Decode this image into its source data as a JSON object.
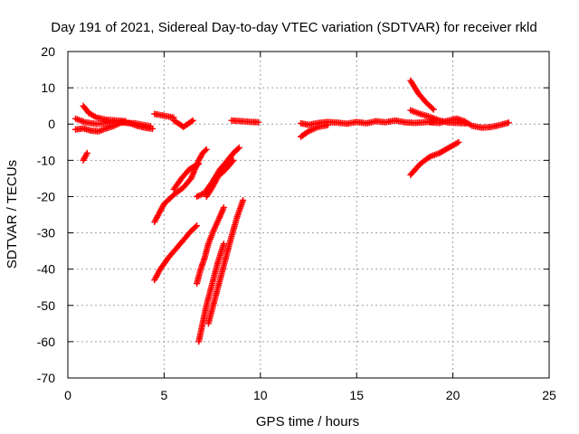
{
  "chart_data": {
    "type": "scatter",
    "title": "Day 191 of 2021, Sidereal Day-to-day VTEC variation (SDTVAR) for receiver rkld",
    "xlabel": "GPS time / hours",
    "ylabel": "SDTVAR / TECUs",
    "xlim": [
      0,
      25
    ],
    "ylim": [
      -70,
      20
    ],
    "x_ticks": [
      0,
      5,
      10,
      15,
      20,
      25
    ],
    "y_ticks": [
      -70,
      -60,
      -50,
      -40,
      -30,
      -20,
      -10,
      0,
      10,
      20
    ],
    "x_tick_labels": [
      "0",
      "5",
      "10",
      "15",
      "20",
      "25"
    ],
    "y_tick_labels": [
      "-70",
      "-60",
      "-50",
      "-40",
      "-30",
      "-20",
      "-10",
      "0",
      "10",
      "20"
    ],
    "grid": true,
    "marker": "plus",
    "color": "#ff0000",
    "series": [
      {
        "x": [
          0.4,
          0.8,
          1.2,
          1.6,
          2.0,
          2.4,
          2.8,
          3.2,
          3.6,
          4.0,
          4.4
        ],
        "y": [
          -1.5,
          -1.2,
          -1.8,
          -2.0,
          -1.2,
          -0.5,
          0.5,
          0.3,
          -0.5,
          -1.0,
          -1.3
        ]
      },
      {
        "x": [
          0.8,
          1.1,
          1.5,
          2.0,
          2.5,
          3.0
        ],
        "y": [
          5.0,
          3.0,
          1.8,
          1.2,
          1.0,
          0.8
        ]
      },
      {
        "x": [
          0.4,
          0.9,
          1.5,
          2.5,
          3.5,
          4.3
        ],
        "y": [
          1.5,
          0.5,
          0.0,
          0.5,
          0.2,
          -0.6
        ]
      },
      {
        "x": [
          0.8,
          1.0
        ],
        "y": [
          -10.0,
          -8.0
        ]
      },
      {
        "x": [
          4.5,
          5.0,
          5.5
        ],
        "y": [
          2.8,
          2.3,
          1.8
        ]
      },
      {
        "x": [
          5.5,
          5.8,
          6.0,
          6.5
        ],
        "y": [
          1.0,
          0.0,
          -0.8,
          1.0
        ]
      },
      {
        "x": [
          8.5,
          9.0,
          9.5,
          9.9
        ],
        "y": [
          1.0,
          0.8,
          0.6,
          0.5
        ]
      },
      {
        "x": [
          4.5,
          4.8,
          5.0,
          5.5,
          6.0,
          6.4,
          6.6,
          6.8,
          7.0,
          7.2
        ],
        "y": [
          -27.0,
          -24.0,
          -22.0,
          -19.5,
          -17.5,
          -15.0,
          -12.5,
          -10.0,
          -8.0,
          -7.0
        ]
      },
      {
        "x": [
          4.5,
          4.8,
          5.2,
          5.6,
          6.0,
          6.4,
          6.7
        ],
        "y": [
          -43.0,
          -40.0,
          -37.0,
          -34.5,
          -32.0,
          -29.5,
          -28.0
        ]
      },
      {
        "x": [
          5.5,
          5.9,
          6.3,
          6.6,
          6.8
        ],
        "y": [
          -18.0,
          -15.0,
          -12.5,
          -11.5,
          -11.0
        ]
      },
      {
        "x": [
          6.7,
          7.1,
          7.5,
          7.9,
          8.3,
          8.6,
          8.9
        ],
        "y": [
          -20.0,
          -19.0,
          -16.0,
          -12.5,
          -10.0,
          -8.0,
          -6.5
        ]
      },
      {
        "x": [
          7.2,
          7.5,
          7.8,
          8.2,
          8.6
        ],
        "y": [
          -20.0,
          -17.5,
          -14.5,
          -12.5,
          -10.0
        ]
      },
      {
        "x": [
          6.7,
          6.9,
          7.1,
          7.3,
          7.6,
          7.9,
          8.1
        ],
        "y": [
          -44.0,
          -40.0,
          -37.0,
          -33.0,
          -29.0,
          -25.5,
          -23.0
        ]
      },
      {
        "x": [
          6.8,
          7.0,
          7.2,
          7.5,
          7.8,
          8.1
        ],
        "y": [
          -60.0,
          -55.0,
          -50.0,
          -44.0,
          -38.0,
          -33.0
        ]
      },
      {
        "x": [
          7.3,
          7.6,
          7.9,
          8.2,
          8.5,
          8.8,
          9.1
        ],
        "y": [
          -55.0,
          -49.0,
          -43.0,
          -37.0,
          -31.0,
          -25.5,
          -21.0
        ]
      },
      {
        "x": [
          12.1,
          12.5,
          13.0,
          13.5,
          14.0,
          14.5,
          15.0,
          15.5,
          16.0,
          16.5,
          17.0,
          17.5,
          18.0,
          18.5,
          19.0
        ],
        "y": [
          0.2,
          -0.2,
          0.3,
          0.6,
          0.4,
          0.1,
          0.6,
          0.2,
          0.8,
          0.5,
          1.0,
          0.5,
          0.3,
          0.5,
          0.8
        ]
      },
      {
        "x": [
          12.1,
          12.5,
          13.0,
          13.5
        ],
        "y": [
          -3.5,
          -2.0,
          -0.8,
          -0.3
        ]
      },
      {
        "x": [
          17.8,
          18.2,
          18.6,
          19.0
        ],
        "y": [
          12.0,
          8.5,
          6.0,
          4.0
        ]
      },
      {
        "x": [
          17.8,
          18.3,
          18.8,
          19.3,
          19.8,
          20.3,
          20.7
        ],
        "y": [
          3.8,
          2.8,
          2.0,
          1.0,
          0.4,
          0.3,
          0.2
        ]
      },
      {
        "x": [
          18.8,
          19.3,
          19.8,
          20.2,
          20.6,
          21.0,
          21.5,
          22.0,
          22.5,
          22.9
        ],
        "y": [
          0.5,
          0.3,
          1.0,
          1.5,
          0.8,
          -0.5,
          -1.0,
          -0.8,
          -0.2,
          0.4
        ]
      },
      {
        "x": [
          17.8,
          18.3,
          18.8,
          19.3,
          19.8,
          20.3
        ],
        "y": [
          -14.0,
          -11.0,
          -9.0,
          -8.0,
          -6.5,
          -5.0
        ]
      }
    ]
  }
}
